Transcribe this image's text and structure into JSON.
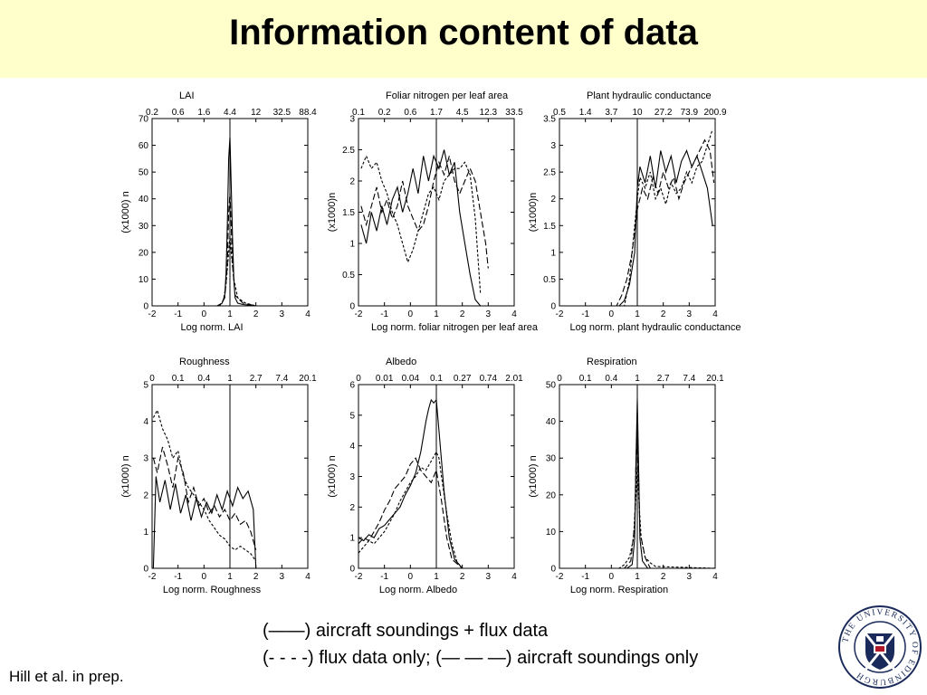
{
  "slide": {
    "title": "Information content of data",
    "legend": {
      "line1": "(——) aircraft soundings + flux data",
      "line2": "(- - - -) flux data only; (— — —) aircraft soundings  only"
    },
    "citation": "Hill et al. in prep.",
    "logo": "University of Edinburgh crest",
    "logo_text": "THE UNIVERSITY OF EDINBURGH",
    "colors": {
      "title_background": "#ffffcc",
      "lines": "#000000"
    }
  },
  "chart_data": [
    {
      "type": "line",
      "title": "LAI",
      "xlabel": "Log norm. LAI",
      "ylabel": "(x1000) n",
      "xlim": [
        -2,
        4
      ],
      "ylim": [
        0,
        70
      ],
      "xticks": [
        -2,
        -1,
        0,
        1,
        2,
        3,
        4
      ],
      "yticks": [
        0,
        10,
        20,
        30,
        40,
        50,
        60,
        70
      ],
      "top_tick_labels": [
        "0.2",
        "0.6",
        "1.6",
        "4.4",
        "12",
        "32.5",
        "88.4"
      ],
      "vline": 1,
      "series": [
        {
          "style": "solid",
          "x": [
            -2,
            0.5,
            0.7,
            0.8,
            0.85,
            0.9,
            0.95,
            1.0,
            1.05,
            1.1,
            1.15,
            1.2,
            1.3,
            1.5,
            2,
            4
          ],
          "y": [
            0,
            0,
            1,
            4,
            12,
            30,
            55,
            63,
            45,
            25,
            10,
            3,
            1,
            0.5,
            0,
            0
          ]
        },
        {
          "style": "dashed",
          "x": [
            -2,
            0.6,
            0.75,
            0.85,
            0.95,
            1.0,
            1.05,
            1.15,
            1.3,
            1.6,
            2,
            4
          ],
          "y": [
            0,
            0,
            2,
            8,
            20,
            26,
            20,
            10,
            3,
            1,
            0,
            0
          ]
        },
        {
          "style": "dash-long",
          "x": [
            -2,
            0.6,
            0.8,
            0.9,
            0.95,
            1.0,
            1.05,
            1.1,
            1.2,
            1.5,
            2,
            4
          ],
          "y": [
            0,
            0,
            3,
            15,
            35,
            42,
            30,
            15,
            4,
            1,
            0,
            0
          ]
        }
      ]
    },
    {
      "type": "line",
      "title": "Foliar nitrogen per leaf area",
      "xlabel": "Log norm. foliar nitrogen per leaf area",
      "ylabel": "(x1000)n",
      "xlim": [
        -2,
        4
      ],
      "ylim": [
        0,
        3
      ],
      "xticks": [
        -2,
        -1,
        0,
        1,
        2,
        3,
        4
      ],
      "yticks": [
        0,
        0.5,
        1,
        1.5,
        2,
        2.5,
        3
      ],
      "top_tick_labels": [
        "0.1",
        "0.2",
        "0.6",
        "1.7",
        "4.5",
        "12.3",
        "33.5"
      ],
      "vline": 1,
      "series": [
        {
          "style": "solid",
          "x": [
            -1.9,
            -1.7,
            -1.5,
            -1.3,
            -1.1,
            -0.9,
            -0.7,
            -0.5,
            -0.3,
            -0.1,
            0.1,
            0.3,
            0.5,
            0.7,
            0.9,
            1.1,
            1.3,
            1.5,
            1.7,
            1.9,
            2.1,
            2.3,
            2.5,
            2.7
          ],
          "y": [
            1.3,
            1.0,
            1.5,
            1.2,
            1.6,
            1.3,
            1.7,
            1.9,
            1.5,
            1.8,
            2.2,
            1.8,
            2.4,
            2.0,
            2.4,
            2.2,
            2.5,
            2.1,
            2.3,
            1.5,
            1.0,
            0.5,
            0.1,
            0
          ]
        },
        {
          "style": "dashed",
          "x": [
            -1.9,
            -1.7,
            -1.5,
            -1.3,
            -1.1,
            -0.9,
            -0.7,
            -0.5,
            -0.3,
            -0.1,
            0.1,
            0.3,
            0.5,
            0.7,
            0.9,
            1.1,
            1.3,
            1.5,
            1.7,
            1.9,
            2.1,
            2.3,
            2.5,
            2.7
          ],
          "y": [
            2.2,
            2.4,
            2.2,
            2.3,
            2.0,
            1.8,
            1.5,
            1.3,
            1.0,
            0.7,
            0.9,
            1.2,
            1.5,
            1.8,
            1.9,
            1.7,
            2.0,
            2.1,
            2.2,
            2.2,
            2.3,
            2.1,
            1.4,
            0.2
          ]
        },
        {
          "style": "dash-long",
          "x": [
            -1.9,
            -1.7,
            -1.5,
            -1.3,
            -1.1,
            -0.9,
            -0.7,
            -0.5,
            -0.3,
            -0.1,
            0.1,
            0.3,
            0.5,
            0.7,
            0.9,
            1.1,
            1.3,
            1.5,
            1.7,
            1.9,
            2.1,
            2.3,
            2.5,
            2.7,
            2.9,
            3.0
          ],
          "y": [
            1.6,
            1.3,
            1.6,
            1.9,
            1.5,
            1.7,
            1.4,
            1.6,
            2.0,
            1.6,
            1.4,
            1.2,
            1.3,
            1.6,
            2.0,
            2.3,
            2.1,
            2.4,
            2.0,
            1.8,
            2.0,
            2.2,
            2.0,
            1.5,
            1.0,
            0.6
          ]
        }
      ]
    },
    {
      "type": "line",
      "title": "Plant hydraulic conductance",
      "xlabel": "Log norm. plant hydraulic conductance",
      "ylabel": "(x1000)n",
      "xlim": [
        -2,
        4
      ],
      "ylim": [
        0,
        3.5
      ],
      "xticks": [
        -2,
        -1,
        0,
        1,
        2,
        3,
        4
      ],
      "yticks": [
        0,
        0.5,
        1,
        1.5,
        2,
        2.5,
        3,
        3.5
      ],
      "top_tick_labels": [
        "0.5",
        "1.4",
        "3.7",
        "10",
        "27.2",
        "73.9",
        "200.9"
      ],
      "vline": 1,
      "series": [
        {
          "style": "solid",
          "x": [
            -2,
            0.3,
            0.5,
            0.7,
            0.9,
            1.0,
            1.1,
            1.3,
            1.5,
            1.7,
            1.9,
            2.1,
            2.3,
            2.5,
            2.7,
            2.9,
            3.1,
            3.3,
            3.5,
            3.7,
            3.9
          ],
          "y": [
            0,
            0,
            0.1,
            0.4,
            1.0,
            2.2,
            2.6,
            2.3,
            2.8,
            2.2,
            2.9,
            2.5,
            2.8,
            2.3,
            2.7,
            2.9,
            2.6,
            2.8,
            2.5,
            2.2,
            1.5
          ]
        },
        {
          "style": "dashed",
          "x": [
            -2,
            0.5,
            0.7,
            0.9,
            1.0,
            1.1,
            1.3,
            1.5,
            1.7,
            1.9,
            2.1,
            2.3,
            2.5,
            2.7,
            2.9,
            3.1,
            3.3,
            3.5,
            3.7,
            3.9
          ],
          "y": [
            0,
            0,
            0.5,
            1.5,
            2.0,
            2.4,
            2.2,
            2.5,
            2.0,
            2.2,
            1.9,
            2.3,
            2.1,
            2.2,
            2.5,
            2.3,
            2.6,
            2.7,
            3.0,
            3.3
          ]
        },
        {
          "style": "dash-long",
          "x": [
            -2,
            0.2,
            0.4,
            0.6,
            0.8,
            1.0,
            1.2,
            1.4,
            1.6,
            1.8,
            2.0,
            2.2,
            2.4,
            2.6,
            2.8,
            3.0,
            3.2,
            3.4,
            3.6,
            3.8,
            3.95
          ],
          "y": [
            0,
            0,
            0.2,
            0.5,
            1.0,
            1.8,
            2.2,
            2.0,
            2.4,
            2.1,
            2.5,
            2.2,
            2.4,
            2.0,
            2.3,
            2.5,
            2.7,
            2.9,
            3.1,
            2.9,
            2.3
          ]
        }
      ]
    },
    {
      "type": "line",
      "title": "Roughness",
      "xlabel": "Log norm. Roughness",
      "ylabel": "(x1000) n",
      "xlim": [
        -2,
        4
      ],
      "ylim": [
        0,
        5
      ],
      "xticks": [
        -2,
        -1,
        0,
        1,
        2,
        3,
        4
      ],
      "yticks": [
        0,
        1,
        2,
        3,
        4,
        5
      ],
      "top_tick_labels": [
        "0",
        "0.1",
        "0.4",
        "1",
        "2.7",
        "7.4",
        "20.1"
      ],
      "vline": 1,
      "series": [
        {
          "style": "solid",
          "x": [
            -1.95,
            -1.85,
            -1.7,
            -1.5,
            -1.3,
            -1.1,
            -0.9,
            -0.7,
            -0.5,
            -0.3,
            -0.1,
            0.1,
            0.3,
            0.5,
            0.7,
            0.9,
            1.1,
            1.3,
            1.5,
            1.7,
            1.9,
            2.0
          ],
          "y": [
            0,
            2.5,
            1.8,
            2.4,
            1.6,
            2.3,
            1.5,
            2.0,
            1.3,
            1.9,
            1.4,
            1.8,
            1.5,
            2.0,
            1.6,
            2.1,
            1.7,
            2.2,
            1.9,
            2.1,
            1.6,
            0
          ]
        },
        {
          "style": "dashed",
          "x": [
            -1.95,
            -1.8,
            -1.6,
            -1.4,
            -1.2,
            -1.0,
            -0.8,
            -0.6,
            -0.4,
            -0.2,
            0,
            0.2,
            0.4,
            0.6,
            0.8,
            1.0,
            1.2,
            1.4,
            1.6,
            1.8,
            2.0
          ],
          "y": [
            4.1,
            4.3,
            3.8,
            3.5,
            3.0,
            3.2,
            2.5,
            2.2,
            2.0,
            1.8,
            1.6,
            1.3,
            1.1,
            0.9,
            0.8,
            0.6,
            0.5,
            0.6,
            0.5,
            0.4,
            0.2
          ]
        },
        {
          "style": "dash-long",
          "x": [
            -1.95,
            -1.8,
            -1.6,
            -1.4,
            -1.2,
            -1.0,
            -0.8,
            -0.6,
            -0.4,
            -0.2,
            0,
            0.2,
            0.4,
            0.6,
            0.8,
            1.0,
            1.2,
            1.4,
            1.6,
            1.8,
            2.0
          ],
          "y": [
            3.0,
            2.6,
            3.3,
            2.8,
            2.2,
            3.0,
            2.6,
            1.8,
            2.2,
            1.7,
            1.9,
            1.5,
            1.7,
            1.4,
            1.6,
            1.3,
            1.5,
            1.2,
            1.3,
            1.0,
            0.5
          ]
        }
      ]
    },
    {
      "type": "line",
      "title": "Albedo",
      "xlabel": "Log norm. Albedo",
      "ylabel": "(x1000) n",
      "xlim": [
        -2,
        4
      ],
      "ylim": [
        0,
        6
      ],
      "xticks": [
        -2,
        -1,
        0,
        1,
        2,
        3,
        4
      ],
      "yticks": [
        0,
        1,
        2,
        3,
        4,
        5,
        6
      ],
      "top_tick_labels": [
        "0",
        "0.01",
        "0.04",
        "0.1",
        "0.27",
        "0.74",
        "2.01"
      ],
      "vline": 1,
      "series": [
        {
          "style": "solid",
          "x": [
            -2,
            -1.8,
            -1.6,
            -1.4,
            -1.2,
            -1.0,
            -0.8,
            -0.6,
            -0.4,
            -0.2,
            0,
            0.2,
            0.4,
            0.6,
            0.7,
            0.8,
            0.9,
            1.0,
            1.1,
            1.3,
            1.5,
            1.7,
            2.0
          ],
          "y": [
            1.0,
            0.9,
            1.1,
            1.0,
            1.3,
            1.4,
            1.6,
            1.8,
            2.0,
            2.4,
            2.7,
            3.1,
            3.8,
            4.8,
            5.2,
            5.5,
            5.4,
            5.5,
            4.5,
            2.5,
            1.0,
            0.3,
            0
          ]
        },
        {
          "style": "dashed",
          "x": [
            -2,
            -1.8,
            -1.6,
            -1.4,
            -1.2,
            -1.0,
            -0.8,
            -0.6,
            -0.4,
            -0.2,
            0,
            0.2,
            0.4,
            0.6,
            0.8,
            1.0,
            1.1,
            1.2,
            1.4,
            1.6,
            1.8,
            2.0
          ],
          "y": [
            0.5,
            0.7,
            0.9,
            0.8,
            1.0,
            1.2,
            1.5,
            1.8,
            2.2,
            2.5,
            2.8,
            3.0,
            3.3,
            3.2,
            3.5,
            3.8,
            3.6,
            3.0,
            1.8,
            0.8,
            0.2,
            0
          ]
        },
        {
          "style": "dash-long",
          "x": [
            -2,
            -1.8,
            -1.6,
            -1.4,
            -1.2,
            -1.0,
            -0.8,
            -0.6,
            -0.4,
            -0.2,
            0,
            0.2,
            0.4,
            0.6,
            0.8,
            1.0,
            1.2,
            1.4,
            1.6,
            2.0
          ],
          "y": [
            0.8,
            1.0,
            0.9,
            1.2,
            1.5,
            1.9,
            2.2,
            2.6,
            2.8,
            3.0,
            3.4,
            3.6,
            3.2,
            3.0,
            2.8,
            3.2,
            2.2,
            1.0,
            0.3,
            0
          ]
        }
      ]
    },
    {
      "type": "line",
      "title": "Respiration",
      "xlabel": "Log norm. Respiration",
      "ylabel": "(x1000) n",
      "xlim": [
        -2,
        4
      ],
      "ylim": [
        0,
        50
      ],
      "xticks": [
        -2,
        -1,
        0,
        1,
        2,
        3,
        4
      ],
      "yticks": [
        0,
        10,
        20,
        30,
        40,
        50
      ],
      "top_tick_labels": [
        "0",
        "0.1",
        "0.4",
        "1",
        "2.7",
        "7.4",
        "20.1"
      ],
      "vline": 1,
      "series": [
        {
          "style": "solid",
          "x": [
            -2,
            0.6,
            0.8,
            0.9,
            0.95,
            1.0,
            1.05,
            1.1,
            1.2,
            1.4,
            4
          ],
          "y": [
            0,
            0,
            1,
            8,
            30,
            46,
            28,
            8,
            2,
            0,
            0
          ]
        },
        {
          "style": "dashed",
          "x": [
            -2,
            0.3,
            0.5,
            0.7,
            0.85,
            0.95,
            1.0,
            1.05,
            1.15,
            1.3,
            1.5,
            1.7,
            4
          ],
          "y": [
            0,
            0,
            1,
            3,
            8,
            20,
            28,
            20,
            8,
            3,
            1.5,
            0.5,
            0
          ]
        },
        {
          "style": "dash-long",
          "x": [
            -2,
            0.5,
            0.75,
            0.9,
            0.95,
            1.0,
            1.05,
            1.1,
            1.3,
            1.5,
            4
          ],
          "y": [
            0,
            0,
            2,
            12,
            30,
            38,
            25,
            10,
            3,
            0,
            0
          ]
        }
      ]
    }
  ]
}
